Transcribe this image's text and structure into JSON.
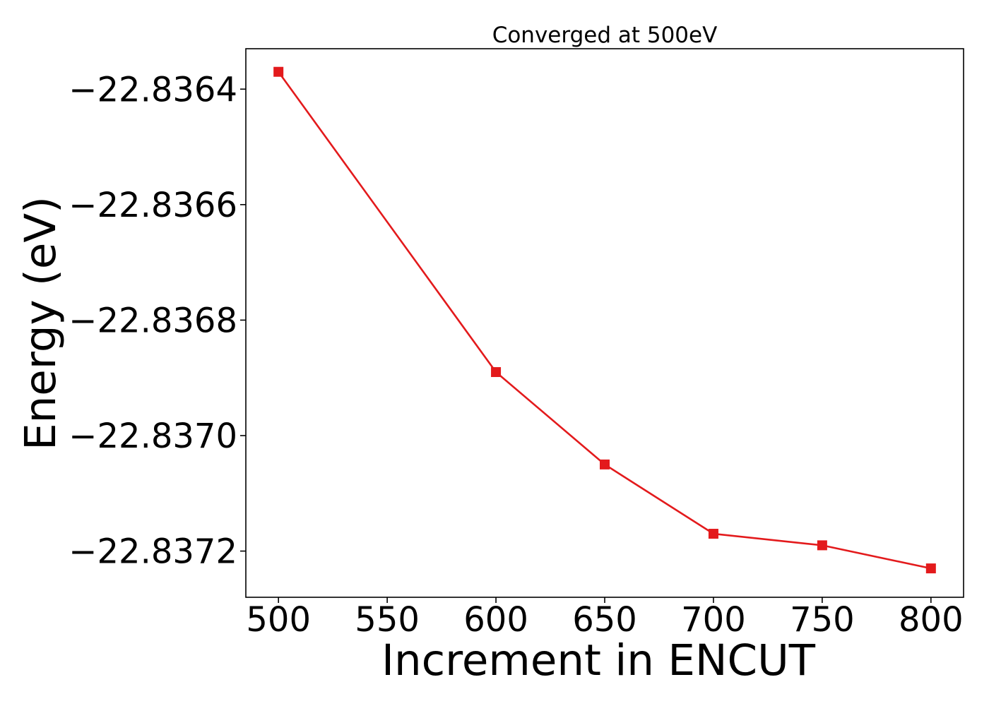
{
  "chart_data": {
    "type": "line",
    "title": "Converged at 500eV",
    "xlabel": "Increment in ENCUT",
    "ylabel": "Energy (eV)",
    "x": [
      500,
      600,
      650,
      700,
      750,
      800
    ],
    "series": [
      {
        "values": [
          -22.83637,
          -22.83689,
          -22.83705,
          -22.83717,
          -22.83719,
          -22.83723
        ],
        "color": "#e31a1c",
        "marker": "square"
      }
    ],
    "xlim": [
      485,
      815
    ],
    "ylim": [
      -22.83728,
      -22.83633
    ],
    "xticks": [
      500,
      550,
      600,
      650,
      700,
      750,
      800
    ],
    "xtick_labels": [
      "500",
      "550",
      "600",
      "650",
      "700",
      "750",
      "800"
    ],
    "yticks": [
      -22.8364,
      -22.8366,
      -22.8368,
      -22.837,
      -22.8372
    ],
    "ytick_labels": [
      "−22.8364",
      "−22.8366",
      "−22.8368",
      "−22.8370",
      "−22.8372"
    ],
    "grid": false,
    "legend": "none"
  }
}
